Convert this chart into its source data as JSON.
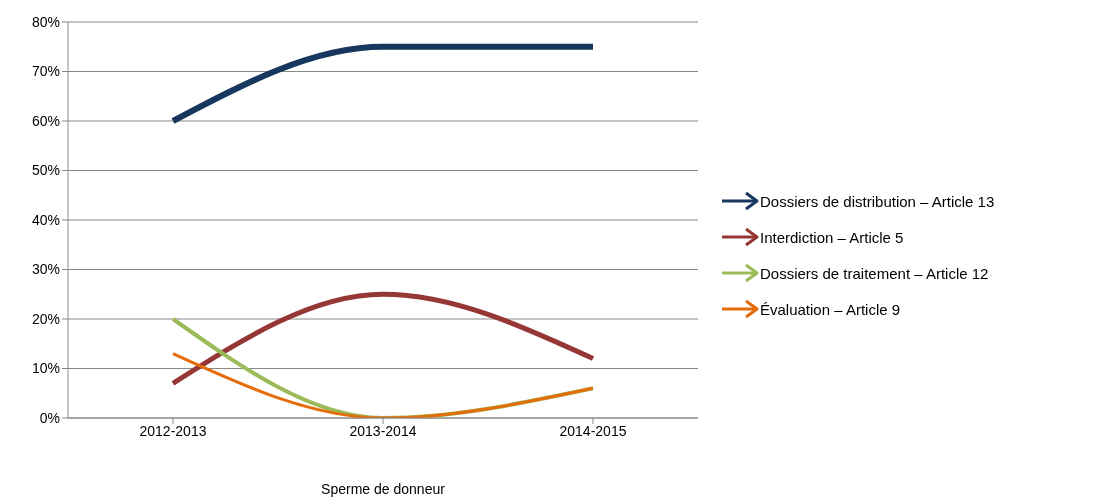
{
  "chart_data": {
    "type": "line",
    "xlabel": "Sperme de donneur",
    "categories": [
      "2012-2013",
      "2013-2014",
      "2014-2015"
    ],
    "series": [
      {
        "name": "Dossiers de distribution – Article 13",
        "color": "#17375e",
        "values": [
          60,
          75,
          75
        ]
      },
      {
        "name": "Interdiction – Article 5",
        "color": "#953735",
        "values": [
          7,
          25,
          12
        ]
      },
      {
        "name": "Dossiers de traitement – Article 12",
        "color": "#9bbb59",
        "values": [
          20,
          0,
          6
        ]
      },
      {
        "name": "Évaluation – Article 9",
        "color": "#e46c0a",
        "values": [
          13,
          0,
          6
        ]
      }
    ],
    "ylim": [
      0,
      80
    ],
    "yticks": [
      {
        "value": 0,
        "label": "0%"
      },
      {
        "value": 10,
        "label": "10%"
      },
      {
        "value": 20,
        "label": "20%"
      },
      {
        "value": 30,
        "label": "30%"
      },
      {
        "value": 40,
        "label": "40%"
      },
      {
        "value": 50,
        "label": "50%"
      },
      {
        "value": 60,
        "label": "60%"
      },
      {
        "value": 70,
        "label": "70%"
      },
      {
        "value": 80,
        "label": "80%"
      }
    ],
    "grid": "y",
    "legend": "right",
    "marker": "none",
    "line_style": "solid"
  }
}
